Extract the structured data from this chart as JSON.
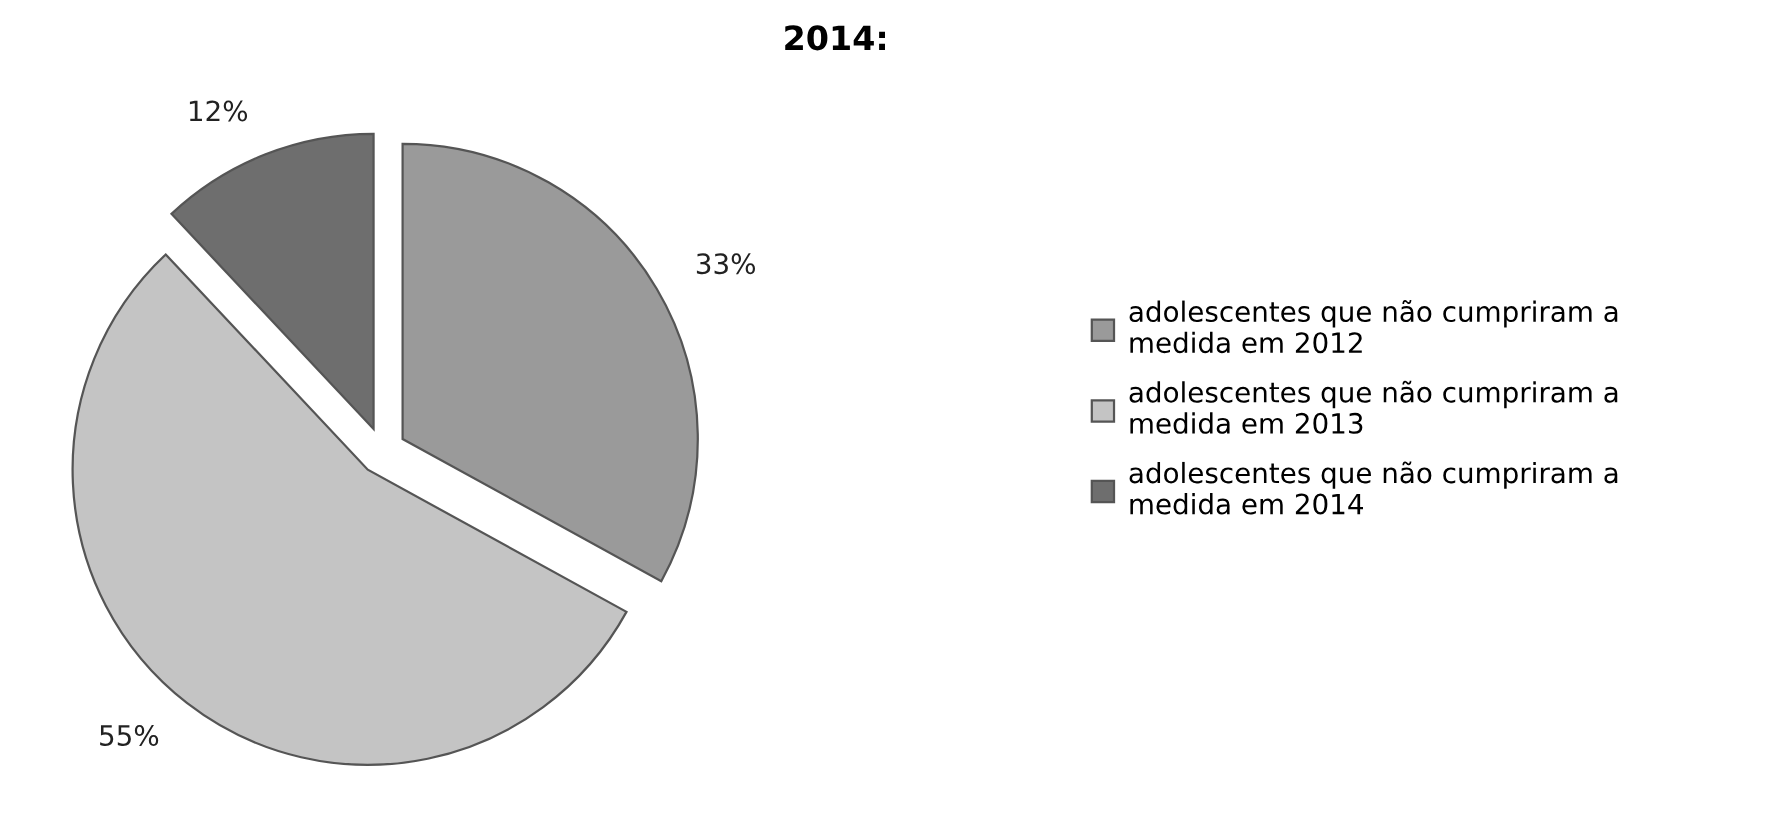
{
  "chart_data": {
    "type": "pie",
    "title": "2014:",
    "categories": [
      "adolescentes que não cumpriram a\nmedida em 2012",
      "adolescentes que não cumpriram a\nmedida em 2013",
      "adolescentes que não cumpriram a\nmedida em 2014"
    ],
    "values": [
      33,
      55,
      12
    ],
    "value_labels": [
      "33%",
      "55%",
      "12%"
    ],
    "colors": [
      "#9a9a9a",
      "#c4c4c4",
      "#6e6e6e"
    ],
    "legend": "right"
  }
}
